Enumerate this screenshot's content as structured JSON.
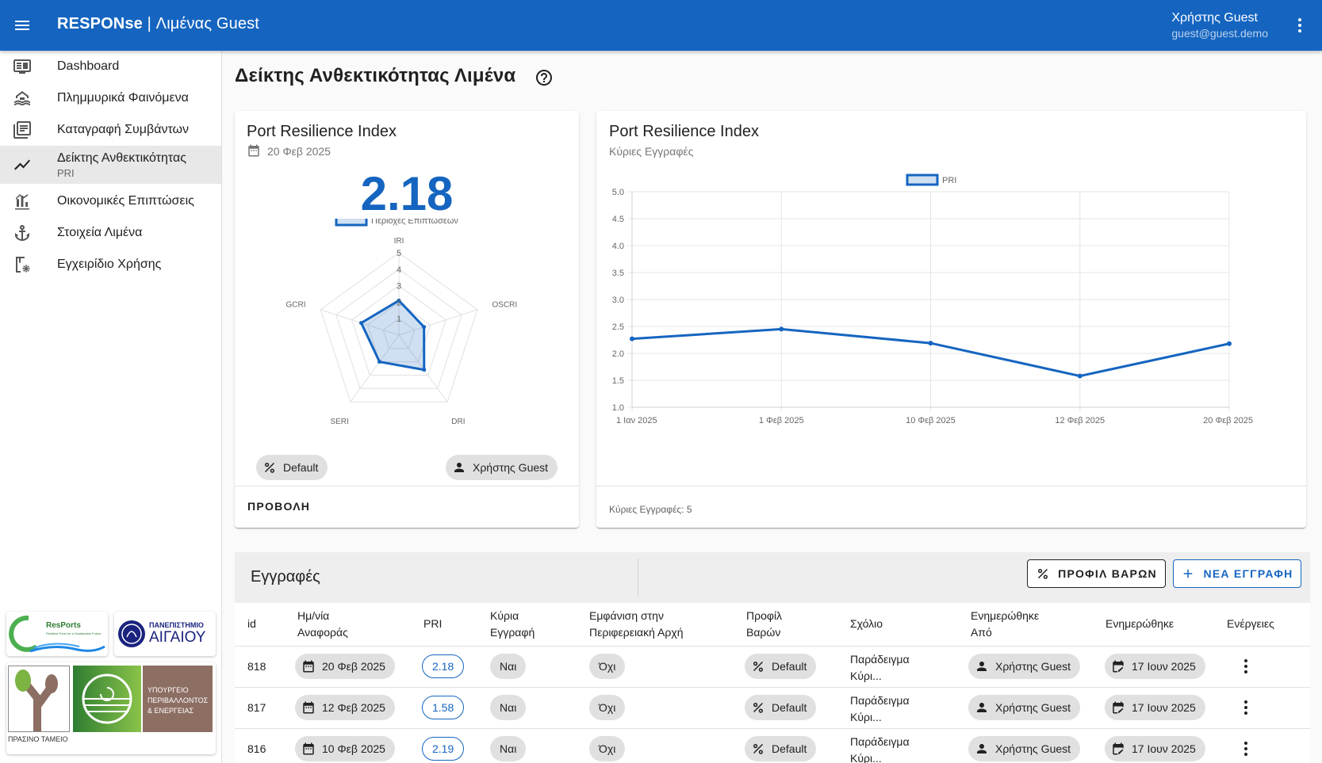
{
  "app": {
    "title_brand": "RESPONse",
    "title_rest": " | Λιμένας Guest",
    "user_name": "Χρήστης Guest",
    "user_email": "guest@guest.demo"
  },
  "sidebar": {
    "items": [
      {
        "label": "Dashboard",
        "icon": "dashboard-monitor-icon"
      },
      {
        "label": "Πλημμυρικά Φαινόμενα",
        "icon": "flood-icon"
      },
      {
        "label": "Καταγραφή Συμβάντων",
        "icon": "event-list-icon"
      },
      {
        "label": "Δείκτης Ανθεκτικότητας",
        "sublabel": "PRI",
        "icon": "trend-line-icon",
        "active": true
      },
      {
        "label": "Οικονομικές Επιπτώσεις",
        "icon": "economic-chart-icon"
      },
      {
        "label": "Στοιχεία Λιμένα",
        "icon": "anchor-icon"
      },
      {
        "label": "Εγχειρίδιο Χρήσης",
        "icon": "manual-settings-icon"
      }
    ],
    "logos": {
      "resports": "ResPorts",
      "resports_tagline": "Resilient Ports for a Sustainable Future",
      "univ_line1": "ΠΑΝΕΠΙΣΤΗΜΙΟ",
      "univ_line2": "ΑΙΓΑΙΟΥ",
      "green_fund": "ΠΡΑΣΙΝΟ ΤΑΜΕΙΟ",
      "ministry_line1": "ΥΠΟΥΡΓΕΙΟ",
      "ministry_line2": "ΠΕΡΙΒΑΛΛΟΝΤΟΣ",
      "ministry_line3": "& ΕΝΕΡΓΕΙΑΣ"
    }
  },
  "page": {
    "title": "Δείκτης Ανθεκτικότητας Λιμένα"
  },
  "pri_card": {
    "title": "Port Resilience Index",
    "date": "20 Φεβ 2025",
    "value": "2.18",
    "legend": "Περιοχές Επιπτώσεων",
    "weights_chip": "Default",
    "user_chip": "Χρήστης Guest",
    "view_button": "ΠΡΟΒΟΛΗ"
  },
  "history_card": {
    "title": "Port Resilience Index",
    "subtitle": "Κύριες Εγγραφές",
    "footer": "Κύριες Εγγραφές: 5"
  },
  "chart_data": [
    {
      "type": "radar",
      "categories": [
        "IRI",
        "OSCRI",
        "DRI",
        "SERI",
        "GCRI"
      ],
      "series": [
        {
          "name": "Περιοχές Επιπτώσεων",
          "values": [
            2.1,
            1.6,
            2.6,
            2.0,
            2.4
          ]
        }
      ],
      "rlim": [
        0,
        5
      ],
      "ticks": [
        "1",
        "2",
        "3",
        "4",
        "5"
      ],
      "color": "#1565c0"
    },
    {
      "type": "line",
      "categories": [
        "1 Ιαν 2025",
        "1 Φεβ 2025",
        "10 Φεβ 2025",
        "12 Φεβ 2025",
        "20 Φεβ 2025"
      ],
      "series": [
        {
          "name": "PRI",
          "values": [
            2.27,
            2.45,
            2.19,
            1.58,
            2.18
          ]
        }
      ],
      "ylim": [
        1.0,
        5.0
      ],
      "yticks": [
        "1.0",
        "1.5",
        "2.0",
        "2.5",
        "3.0",
        "3.5",
        "4.0",
        "4.5",
        "5.0"
      ],
      "legend": "top",
      "grid": true,
      "color": "#1565c0"
    }
  ],
  "table": {
    "title": "Εγγραφές",
    "weights_button": "ΠΡΟΦΙΛ ΒΑΡΩΝ",
    "new_button": "ΝΕΑ ΕΓΓΡΑΦΗ",
    "headers": {
      "id": "id",
      "date_l1": "Ημ/νία",
      "date_l2": "Αναφοράς",
      "pri": "PRI",
      "main_l1": "Κύρια",
      "main_l2": "Εγγραφή",
      "show_l1": "Εμφάνιση στην",
      "show_l2": "Περιφερειακή Αρχή",
      "profile_l1": "Προφίλ",
      "profile_l2": "Βαρών",
      "comment": "Σχόλιο",
      "updby_l1": "Ενημερώθηκε",
      "updby_l2": "Από",
      "updated": "Ενημερώθηκε",
      "actions": "Ενέργειες"
    },
    "rows": [
      {
        "id": "818",
        "date": "20 Φεβ 2025",
        "pri": "2.18",
        "main": "Ναι",
        "show": "Όχι",
        "profile": "Default",
        "comment_l1": "Παράδειγμα",
        "comment_l2": "Κύρι...",
        "updated_by": "Χρήστης Guest",
        "updated": "17 Ιουν 2025"
      },
      {
        "id": "817",
        "date": "12 Φεβ 2025",
        "pri": "1.58",
        "main": "Ναι",
        "show": "Όχι",
        "profile": "Default",
        "comment_l1": "Παράδειγμα",
        "comment_l2": "Κύρι...",
        "updated_by": "Χρήστης Guest",
        "updated": "17 Ιουν 2025"
      },
      {
        "id": "816",
        "date": "10 Φεβ 2025",
        "pri": "2.19",
        "main": "Ναι",
        "show": "Όχι",
        "profile": "Default",
        "comment_l1": "Παράδειγμα",
        "comment_l2": "Κύρι...",
        "updated_by": "Χρήστης Guest",
        "updated": "17 Ιουν 2025"
      }
    ]
  }
}
